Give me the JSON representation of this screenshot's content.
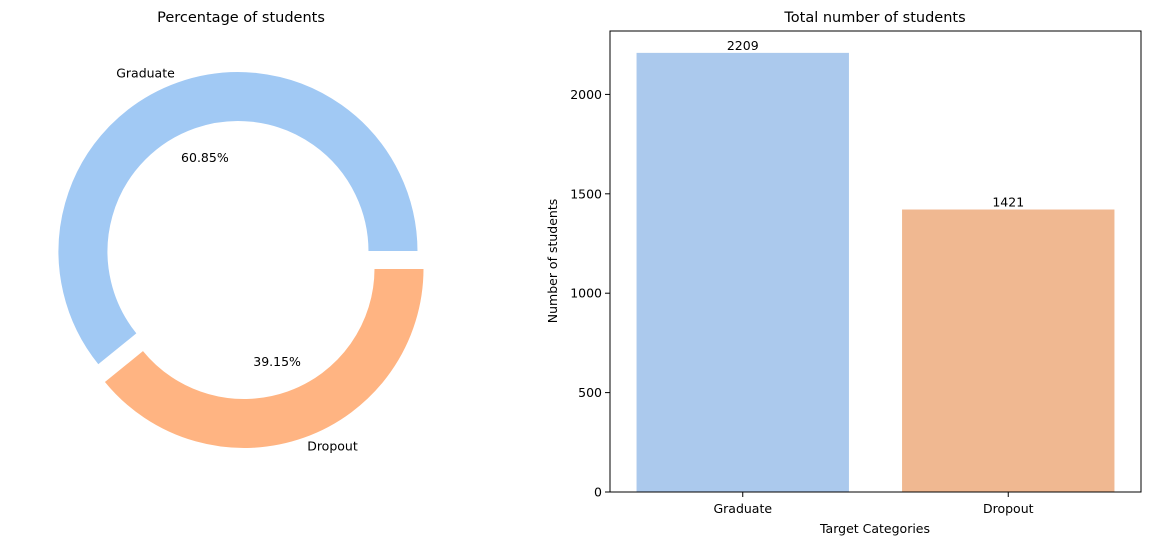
{
  "chart_data": [
    {
      "type": "pie",
      "style": "donut",
      "title": "Percentage of students",
      "categories": [
        "Graduate",
        "Dropout"
      ],
      "values": [
        60.85,
        39.15
      ],
      "autopct_labels": [
        "60.85%",
        "39.15%"
      ],
      "colors": [
        "#a1c9f4",
        "#ffb482"
      ],
      "start_angle_deg": 0,
      "explode": [
        0.05,
        0.05
      ],
      "legend": "none"
    },
    {
      "type": "bar",
      "title": "Total number of students",
      "categories": [
        "Graduate",
        "Dropout"
      ],
      "values": [
        2209,
        1421
      ],
      "data_labels": [
        "2209",
        "1421"
      ],
      "colors": [
        "#abc9ed",
        "#f0b891"
      ],
      "xlabel": "Target Categories",
      "ylabel": "Number of students",
      "ylim": [
        0,
        2319
      ],
      "yticks": [
        0,
        500,
        1000,
        1500,
        2000
      ],
      "grid": false,
      "legend": "none"
    }
  ]
}
